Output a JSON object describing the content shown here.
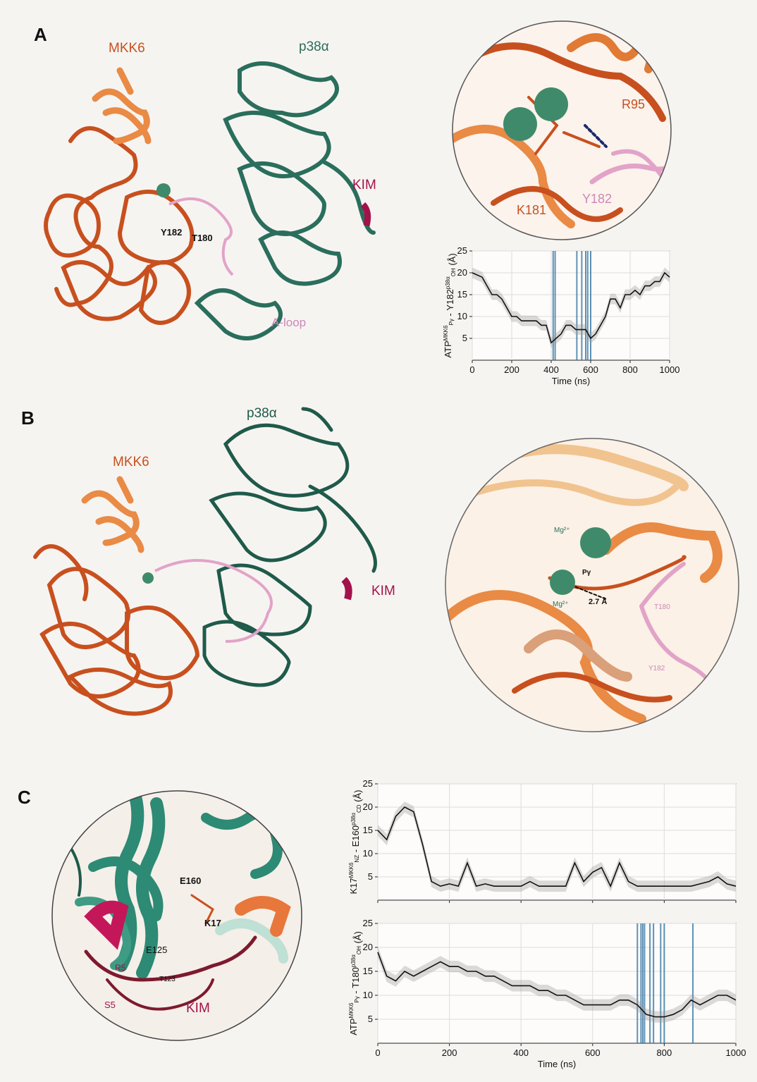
{
  "panels": {
    "a": {
      "letter": "A",
      "structure": {
        "mkk6": "MKK6",
        "p38": "p38α",
        "kim": "KIM",
        "y182": "Y182",
        "t180": "T180",
        "aloop": "A-loop"
      },
      "zoom": {
        "r95": "R95",
        "k181": "K181",
        "y182": "Y182"
      }
    },
    "b": {
      "letter": "B",
      "structure": {
        "mkk6": "MKK6",
        "p38": "p38α",
        "kim": "KIM"
      },
      "zoom": {
        "mg1": "Mg²⁺",
        "mg2": "Mg²⁺",
        "pg": "Pγ",
        "dist": "2.7 Å",
        "t180": "T180",
        "y182": "Y182"
      }
    },
    "c": {
      "letter": "C",
      "zoom": {
        "e160": "E160",
        "k17": "K17",
        "e125": "E125",
        "r5": "R5",
        "t123": "T123",
        "s5": "S5",
        "kim": "KIM"
      }
    }
  },
  "colors": {
    "mkk6": "#c8501e",
    "mkk6_light": "#e98a45",
    "p38": "#2a6e5c",
    "aloop": "#e2a3c8",
    "kim": "#a3124a",
    "mg": "#3f8a6a",
    "trace": "#111111",
    "event": "#2c6f9e"
  },
  "chart_data": [
    {
      "type": "line",
      "id": "A",
      "xlabel": "Time (ns)",
      "ylabel": "ATP^MKK6_Pγ - Y182^p38α_OH (Å)",
      "xlim": [
        0,
        1000
      ],
      "ylim": [
        0,
        25
      ],
      "xticks": [
        0,
        200,
        400,
        600,
        800,
        1000
      ],
      "yticks": [
        5,
        10,
        15,
        20,
        25
      ],
      "grid": true,
      "x": [
        0,
        25,
        50,
        75,
        100,
        125,
        150,
        175,
        200,
        225,
        250,
        275,
        300,
        325,
        350,
        375,
        400,
        425,
        450,
        475,
        500,
        525,
        550,
        575,
        600,
        625,
        650,
        675,
        700,
        725,
        750,
        775,
        800,
        825,
        850,
        875,
        900,
        925,
        950,
        975,
        1000
      ],
      "y": [
        20,
        19.5,
        19,
        17,
        15,
        15,
        14,
        12,
        10,
        10,
        9,
        9,
        9,
        9,
        8,
        8,
        4,
        5,
        6,
        8,
        8,
        7,
        7,
        7,
        5,
        6,
        8,
        10,
        14,
        14,
        12,
        15,
        15,
        16,
        15,
        17,
        17,
        18,
        18,
        20,
        19
      ],
      "events_x": [
        410,
        420,
        530,
        555,
        575,
        585,
        600
      ]
    },
    {
      "type": "line",
      "id": "C-top",
      "ylabel": "K17^MKK6_NZ - E160^p38α_CD (Å)",
      "xlim": [
        0,
        1000
      ],
      "ylim": [
        0,
        25
      ],
      "yticks": [
        5,
        10,
        15,
        20,
        25
      ],
      "grid": true,
      "x": [
        0,
        25,
        50,
        75,
        100,
        125,
        150,
        175,
        200,
        225,
        250,
        275,
        300,
        325,
        350,
        375,
        400,
        425,
        450,
        475,
        500,
        525,
        550,
        575,
        600,
        625,
        650,
        675,
        700,
        725,
        750,
        775,
        800,
        825,
        850,
        875,
        900,
        925,
        950,
        975,
        1000
      ],
      "y": [
        15,
        13,
        18,
        20,
        19,
        12,
        4,
        3,
        3.5,
        3,
        8,
        3,
        3.5,
        3,
        3,
        3,
        3,
        4,
        3,
        3,
        3,
        3,
        8,
        4,
        6,
        7,
        3,
        8,
        4,
        3,
        3,
        3,
        3,
        3,
        3,
        3,
        3.5,
        4,
        5,
        3.5,
        3
      ]
    },
    {
      "type": "line",
      "id": "C-bottom",
      "xlabel": "Time (ns)",
      "ylabel": "ATP^MKK6_Pγ - T180^p38α_OH (Å)",
      "xlim": [
        0,
        1000
      ],
      "ylim": [
        0,
        25
      ],
      "xticks": [
        0,
        200,
        400,
        600,
        800,
        1000
      ],
      "yticks": [
        5,
        10,
        15,
        20,
        25
      ],
      "grid": true,
      "x": [
        0,
        25,
        50,
        75,
        100,
        125,
        150,
        175,
        200,
        225,
        250,
        275,
        300,
        325,
        350,
        375,
        400,
        425,
        450,
        475,
        500,
        525,
        550,
        575,
        600,
        625,
        650,
        675,
        700,
        725,
        750,
        775,
        800,
        825,
        850,
        875,
        900,
        925,
        950,
        975,
        1000
      ],
      "y": [
        19,
        14,
        13,
        15,
        14,
        15,
        16,
        17,
        16,
        16,
        15,
        15,
        14,
        14,
        13,
        12,
        12,
        12,
        11,
        11,
        10,
        10,
        9,
        8,
        8,
        8,
        8,
        9,
        9,
        8,
        6,
        5.5,
        5.5,
        6,
        7,
        9,
        8,
        9,
        10,
        10,
        9
      ],
      "events_x": [
        725,
        735,
        740,
        745,
        760,
        770,
        790,
        800,
        880
      ]
    }
  ]
}
